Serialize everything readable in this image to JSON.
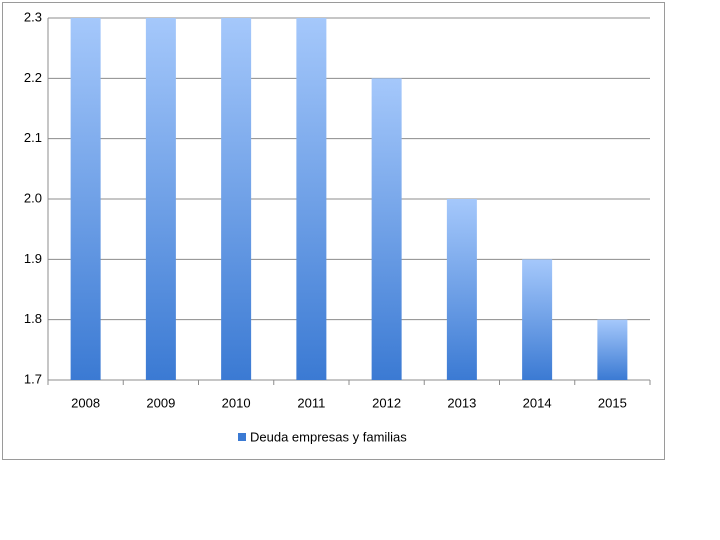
{
  "chart_data": {
    "type": "bar",
    "categories": [
      "2008",
      "2009",
      "2010",
      "2011",
      "2012",
      "2013",
      "2014",
      "2015"
    ],
    "series": [
      {
        "name": "Deuda empresas y familias",
        "color": "#3b7ad3",
        "values": [
          2.3,
          2.3,
          2.3,
          2.3,
          2.2,
          2.0,
          1.9,
          1.8
        ]
      }
    ],
    "ylim": [
      1.7,
      2.3
    ],
    "yticks": [
      1.7,
      1.8,
      1.9,
      {
        "value": 2.0,
        "label": "2.0"
      },
      2.1,
      2.2,
      2.3
    ],
    "grid": true,
    "legend": "bottom"
  }
}
